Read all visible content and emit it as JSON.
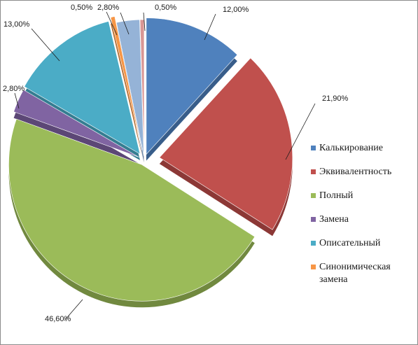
{
  "chart_data": {
    "type": "pie",
    "title": "",
    "slices": [
      {
        "name": "Калькирование",
        "value": 12.0,
        "label": "12,00%",
        "color": "#4f81bd",
        "side": "#385d8a"
      },
      {
        "name": "Эквивалентность",
        "value": 21.9,
        "label": "21,90%",
        "color": "#c0504d",
        "side": "#8c3836"
      },
      {
        "name": "Полный",
        "value": 46.6,
        "label": "46,60%",
        "color": "#9bbb59",
        "side": "#71893f"
      },
      {
        "name": "Замена",
        "value": 2.8,
        "label": "2,80%",
        "color": "#8064a2",
        "side": "#5c4776"
      },
      {
        "name": "Описательный",
        "value": 13.0,
        "label": "13,00%",
        "color": "#4bacc6",
        "side": "#357d91"
      },
      {
        "name": "Синонимическая замена",
        "value": 0.5,
        "label": "0,50%",
        "color": "#f79646",
        "side": "#b66d31"
      },
      {
        "name": "",
        "value": 2.8,
        "label": "2,80%",
        "color": "#95b3d7",
        "side": "#6d87a8"
      },
      {
        "name": "",
        "value": 0.5,
        "label": "0,50%",
        "color": "#d99694",
        "side": "#a06e6c"
      }
    ],
    "legend": {
      "position": "right",
      "entries": [
        {
          "lines": [
            "Калькирование"
          ],
          "color": "#4f81bd"
        },
        {
          "lines": [
            "Эквивалентность"
          ],
          "color": "#c0504d"
        },
        {
          "lines": [
            "Полный"
          ],
          "color": "#9bbb59"
        },
        {
          "lines": [
            "Замена"
          ],
          "color": "#8064a2"
        },
        {
          "lines": [
            "Описательный"
          ],
          "color": "#4bacc6"
        },
        {
          "lines": [
            "Синонимическая",
            "замена"
          ],
          "color": "#f79646"
        }
      ]
    }
  }
}
